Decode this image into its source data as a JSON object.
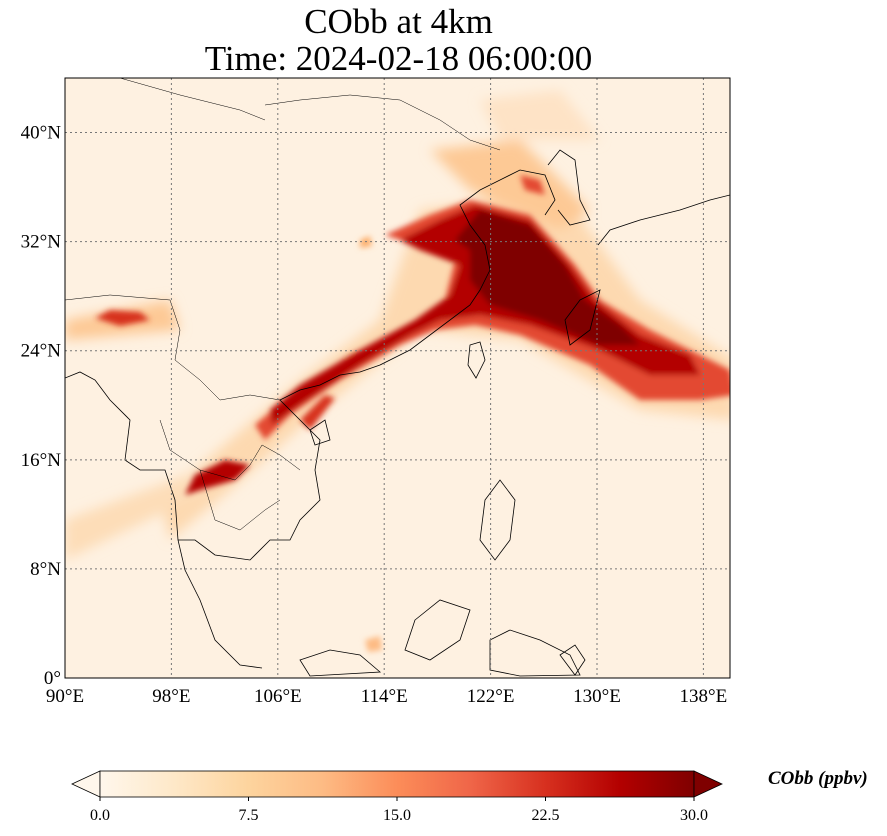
{
  "title": {
    "line1": "CObb at 4km",
    "line2": "Time: 2024-02-18 06:00:00"
  },
  "map": {
    "lon_range": [
      90,
      140
    ],
    "lat_range": [
      0,
      44
    ],
    "lon_ticks": [
      {
        "value": 90,
        "label": "90°E"
      },
      {
        "value": 98,
        "label": "98°E"
      },
      {
        "value": 106,
        "label": "106°E"
      },
      {
        "value": 114,
        "label": "114°E"
      },
      {
        "value": 122,
        "label": "122°E"
      },
      {
        "value": 130,
        "label": "130°E"
      },
      {
        "value": 138,
        "label": "138°E"
      }
    ],
    "lat_ticks": [
      {
        "value": 0,
        "label": "0°"
      },
      {
        "value": 8,
        "label": "8°N"
      },
      {
        "value": 16,
        "label": "16°N"
      },
      {
        "value": 24,
        "label": "24°N"
      },
      {
        "value": 32,
        "label": "32°N"
      },
      {
        "value": 40,
        "label": "40°N"
      }
    ],
    "gridlines": true,
    "background_color": "#fef1e1",
    "coastline_color": "#000000"
  },
  "colorbar": {
    "label": "CObb (ppbv)",
    "colormap": "OrRd",
    "vmin": 0,
    "vmax": 30,
    "extend": "both",
    "ticks": [
      {
        "value": 0,
        "label": "0.0"
      },
      {
        "value": 7.5,
        "label": "7.5"
      },
      {
        "value": 15,
        "label": "15.0"
      },
      {
        "value": 22.5,
        "label": "22.5"
      },
      {
        "value": 30,
        "label": "30.0"
      }
    ],
    "stops": [
      "#fff7ec",
      "#fee8c8",
      "#fdd49e",
      "#fdbb84",
      "#fc8d59",
      "#ef6548",
      "#d7301f",
      "#b30000",
      "#7f0000"
    ]
  }
}
